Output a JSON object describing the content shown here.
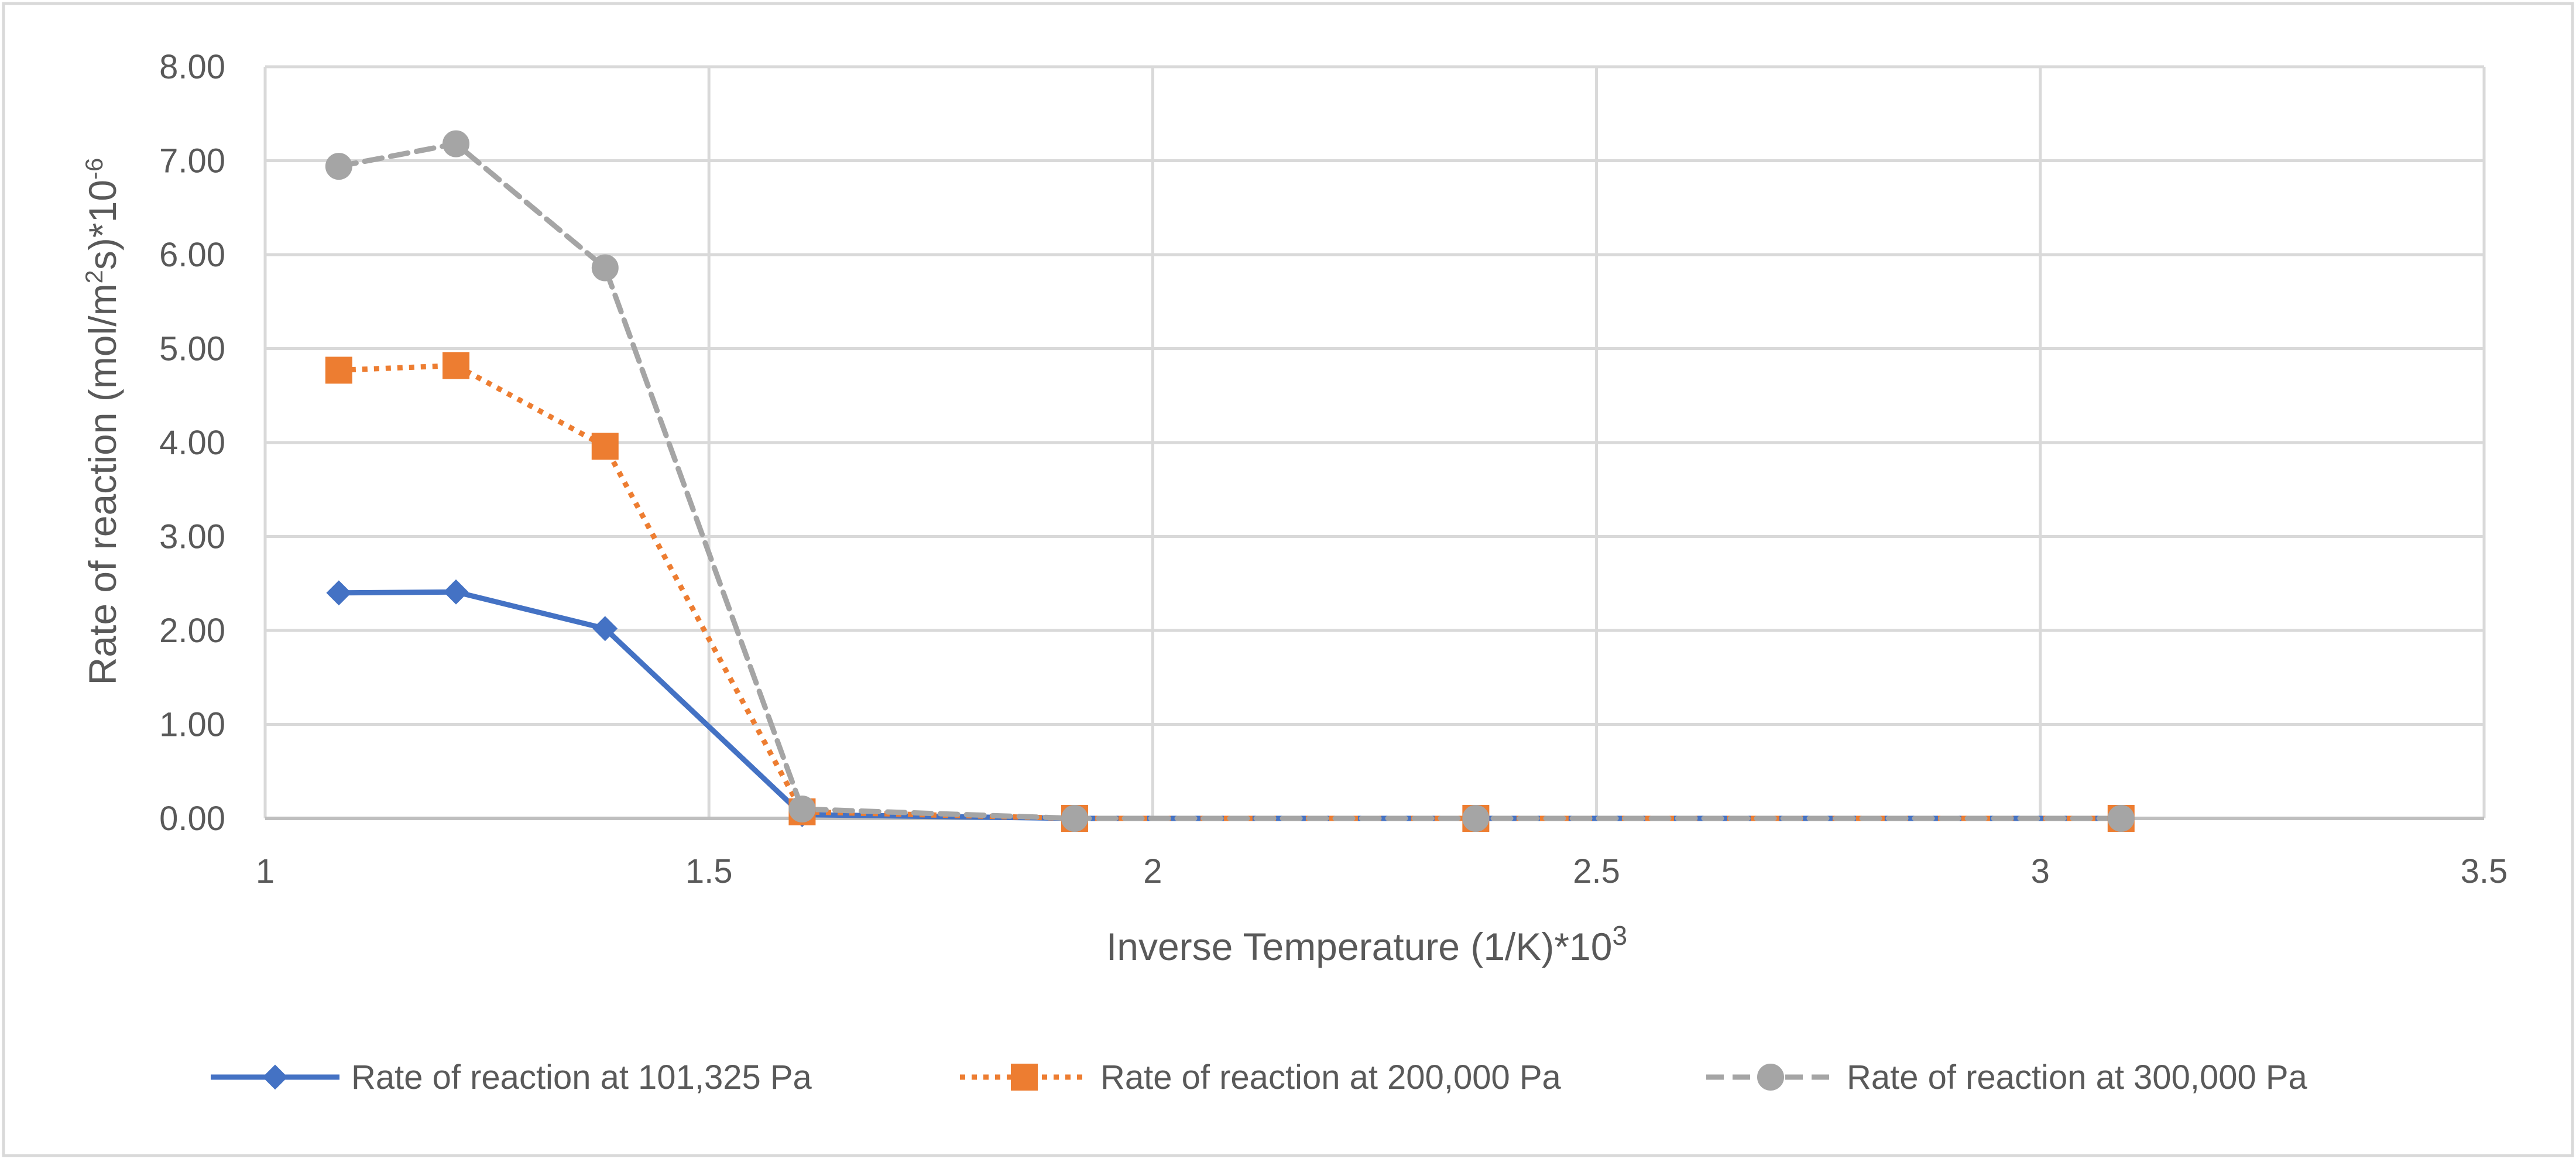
{
  "chart_data": {
    "type": "scatter",
    "title": "",
    "xlabel": "Inverse Temperature (1/K)*10",
    "xlabel_sup": "3",
    "ylabel_parts": [
      "Rate of reaction (mol/m",
      "2",
      "s)*10",
      "-6"
    ],
    "xlim": [
      1,
      3.5
    ],
    "ylim": [
      0,
      8
    ],
    "x_ticks": [
      1,
      1.5,
      2,
      2.5,
      3,
      3.5
    ],
    "x_tick_labels": [
      "1",
      "1.5",
      "2",
      "2.5",
      "3",
      "3.5"
    ],
    "y_ticks": [
      0,
      1,
      2,
      3,
      4,
      5,
      6,
      7,
      8
    ],
    "y_tick_labels": [
      "0.00",
      "1.00",
      "2.00",
      "3.00",
      "4.00",
      "5.00",
      "6.00",
      "7.00",
      "8.00"
    ],
    "grid": true,
    "legend_position": "bottom",
    "series": [
      {
        "name": "Rate of reaction at 101,325 Pa",
        "color": "#4472C4",
        "line_style": "solid",
        "marker": "diamond",
        "x": [
          1.083,
          1.215,
          1.383,
          1.605,
          1.912,
          2.364,
          3.091
        ],
        "y": [
          2.4,
          2.41,
          2.02,
          0.04,
          0.0,
          0.0,
          0.0
        ]
      },
      {
        "name": "Rate of reaction at 200,000 Pa",
        "color": "#ED7D31",
        "line_style": "dotted",
        "marker": "square",
        "x": [
          1.083,
          1.215,
          1.383,
          1.605,
          1.912,
          2.364,
          3.091
        ],
        "y": [
          4.77,
          4.82,
          3.96,
          0.07,
          0.0,
          0.0,
          0.0
        ]
      },
      {
        "name": "Rate of reaction at 300,000 Pa",
        "color": "#A5A5A5",
        "line_style": "dashed",
        "marker": "circle",
        "x": [
          1.083,
          1.215,
          1.383,
          1.605,
          1.912,
          2.364,
          3.091
        ],
        "y": [
          6.94,
          7.18,
          5.86,
          0.1,
          0.0,
          0.0,
          0.0
        ]
      }
    ]
  }
}
